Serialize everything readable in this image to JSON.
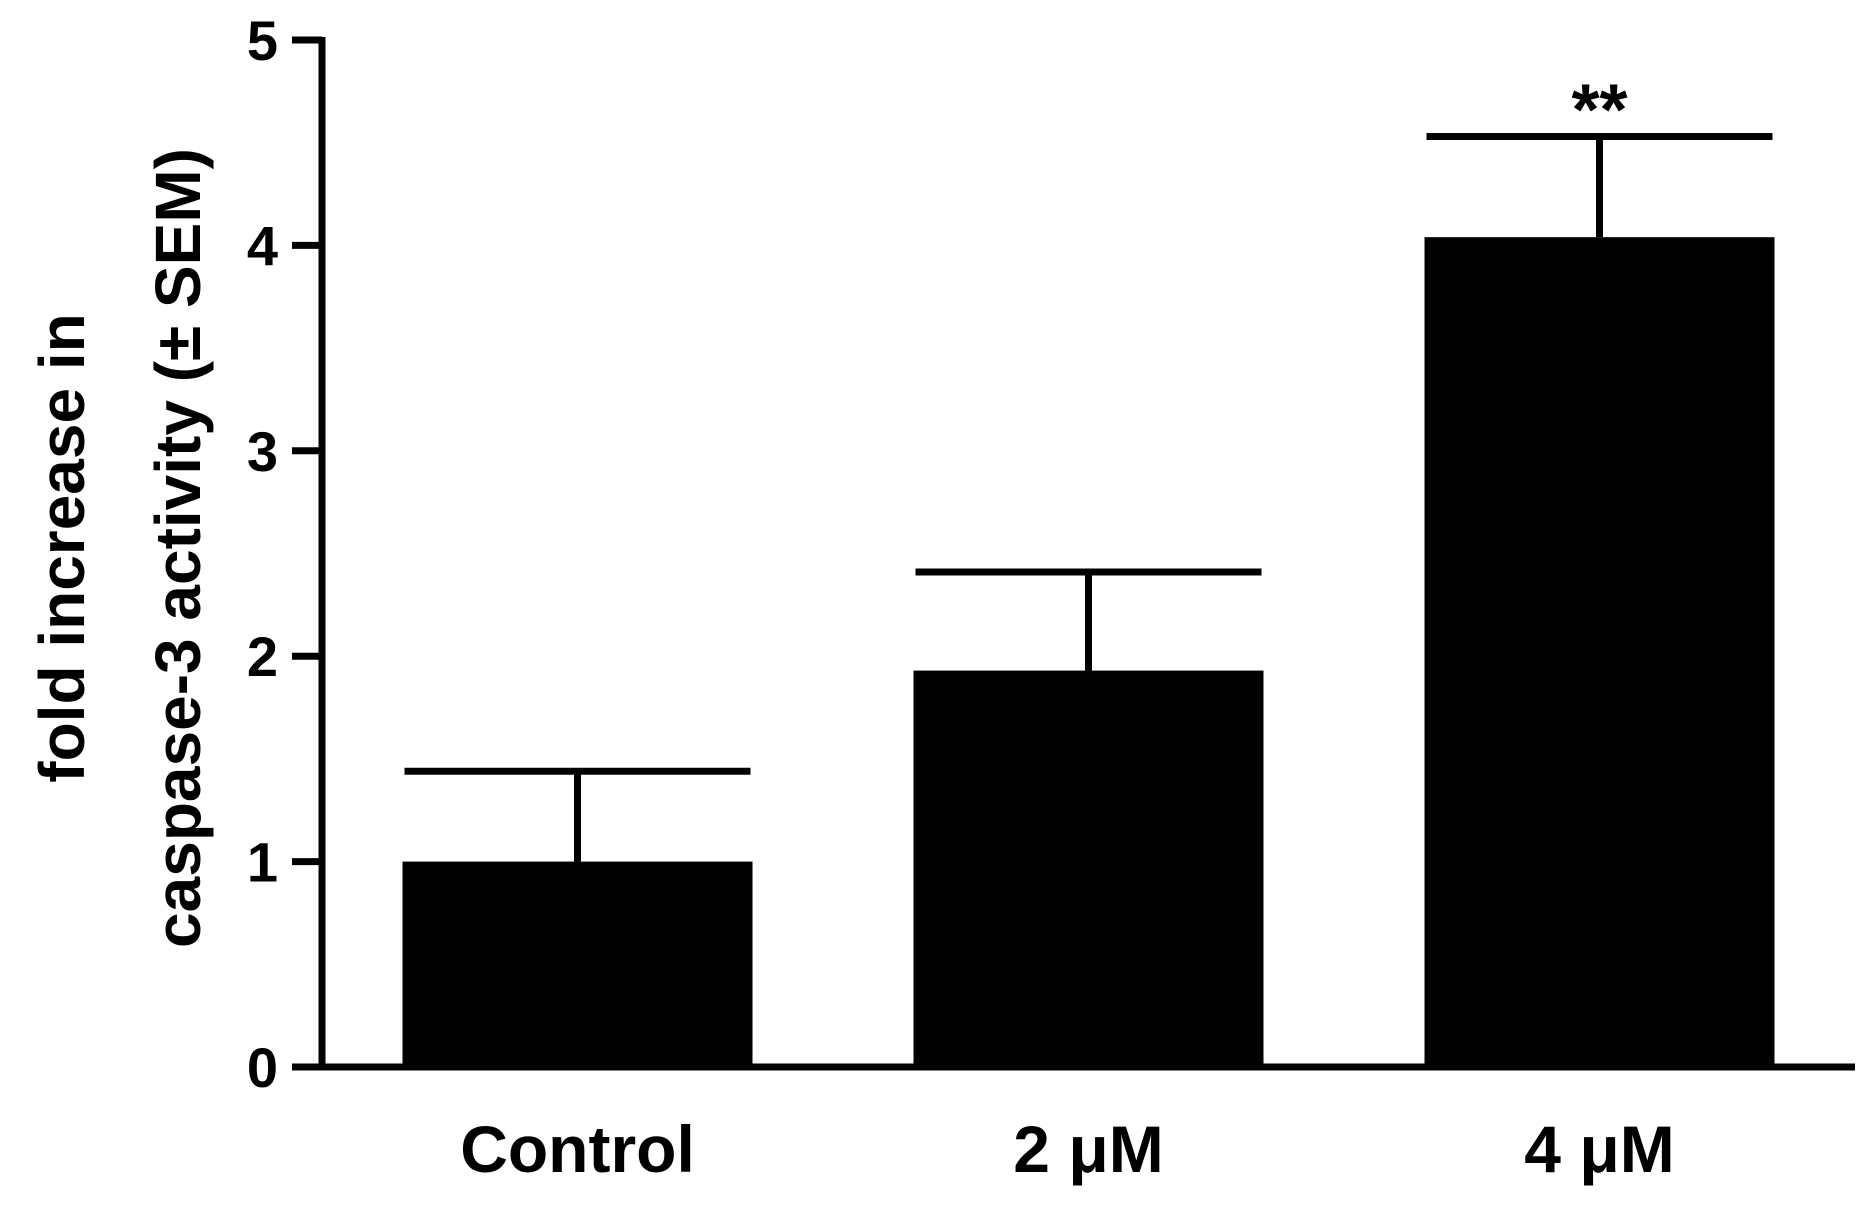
{
  "chart_data": {
    "type": "bar",
    "categories": [
      "Control",
      "2 μM",
      "4 μM"
    ],
    "values": [
      1.0,
      1.93,
      4.04
    ],
    "errors": [
      0.44,
      0.48,
      0.49
    ],
    "significance": [
      "",
      "",
      "**"
    ],
    "ylabel_lines": [
      "fold increase in",
      "caspase-3 activity (± SEM)"
    ],
    "xlabel": "",
    "ylim": [
      0,
      5
    ],
    "yticks": [
      0,
      1,
      2,
      3,
      4,
      5
    ],
    "bar_color": "#000000",
    "grid": false
  }
}
